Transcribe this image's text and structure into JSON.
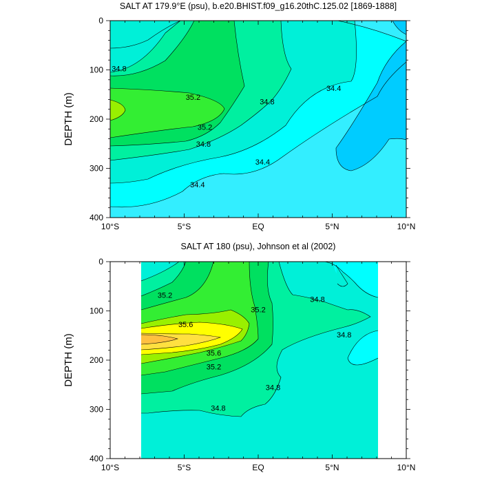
{
  "colors": {
    "level_lt_34_2": "#00ccff",
    "level_34_2": "#33eeff",
    "level_34_4": "#00ffff",
    "level_34_6": "#00f0d8",
    "level_34_8": "#00f0a0",
    "level_35_0": "#00e060",
    "level_35_2": "#33ee33",
    "level_35_4": "#99f000",
    "level_35_6": "#ffff00",
    "level_35_8": "#ffe040",
    "level_36_0": "#ffc040"
  },
  "chart_data": [
    {
      "type": "heatmap",
      "title": "SALT AT 179.9°E (psu), b.e20.BHIST.f09_g16.20thC.125.02 [1869-1888]",
      "ylabel": "DEPTH (m)",
      "xlabel": "",
      "x_ticks": [
        {
          "value": -10,
          "label": "10°S"
        },
        {
          "value": -5,
          "label": "5°S"
        },
        {
          "value": 0,
          "label": "EQ"
        },
        {
          "value": 5,
          "label": "5°N"
        },
        {
          "value": 10,
          "label": "10°N"
        }
      ],
      "y_ticks": [
        {
          "value": 0,
          "label": "0"
        },
        {
          "value": 100,
          "label": "100"
        },
        {
          "value": 200,
          "label": "200"
        },
        {
          "value": 300,
          "label": "300"
        },
        {
          "value": 400,
          "label": "400"
        }
      ],
      "xlim": [
        -10,
        10
      ],
      "ylim": [
        0,
        400
      ],
      "y_inverted": true,
      "contour_interval": 0.2,
      "contour_labels": [
        {
          "text": "34.8",
          "lat": -9.4,
          "depth": 97
        },
        {
          "text": "35.2",
          "lat": -4.4,
          "depth": 155
        },
        {
          "text": "35.2",
          "lat": -3.6,
          "depth": 216
        },
        {
          "text": "34.8",
          "lat": -3.7,
          "depth": 250
        },
        {
          "text": "34.4",
          "lat": -4.1,
          "depth": 333
        },
        {
          "text": "34.8",
          "lat": 0.6,
          "depth": 164
        },
        {
          "text": "34.4",
          "lat": 0.3,
          "depth": 287
        },
        {
          "text": "34.4",
          "lat": 5.1,
          "depth": 137
        }
      ]
    },
    {
      "type": "heatmap",
      "title": "SALT AT 180 (psu), Johnson et al (2002)",
      "ylabel": "DEPTH (m)",
      "xlabel": "",
      "x_ticks": [
        {
          "value": -10,
          "label": "10°S"
        },
        {
          "value": -5,
          "label": "5°S"
        },
        {
          "value": 0,
          "label": "EQ"
        },
        {
          "value": 5,
          "label": "5°N"
        },
        {
          "value": 10,
          "label": "10°N"
        }
      ],
      "y_ticks": [
        {
          "value": 0,
          "label": "0"
        },
        {
          "value": 100,
          "label": "100"
        },
        {
          "value": 200,
          "label": "200"
        },
        {
          "value": 300,
          "label": "300"
        },
        {
          "value": 400,
          "label": "400"
        }
      ],
      "xlim": [
        -10,
        10
      ],
      "ylim": [
        0,
        400
      ],
      "y_inverted": true,
      "data_lat_range": [
        -8,
        8
      ],
      "contour_interval": 0.2,
      "contour_labels": [
        {
          "text": "35.2",
          "lat": -6.3,
          "depth": 68
        },
        {
          "text": "35.6",
          "lat": -4.9,
          "depth": 127
        },
        {
          "text": "35.6",
          "lat": -3.0,
          "depth": 185
        },
        {
          "text": "35.2",
          "lat": -3.0,
          "depth": 213
        },
        {
          "text": "35.2",
          "lat": 0.0,
          "depth": 97
        },
        {
          "text": "34.8",
          "lat": 4.0,
          "depth": 76
        },
        {
          "text": "34.8",
          "lat": 5.8,
          "depth": 148
        },
        {
          "text": "34.8",
          "lat": 1.0,
          "depth": 255
        },
        {
          "text": "34.8",
          "lat": -2.7,
          "depth": 297
        }
      ]
    }
  ]
}
